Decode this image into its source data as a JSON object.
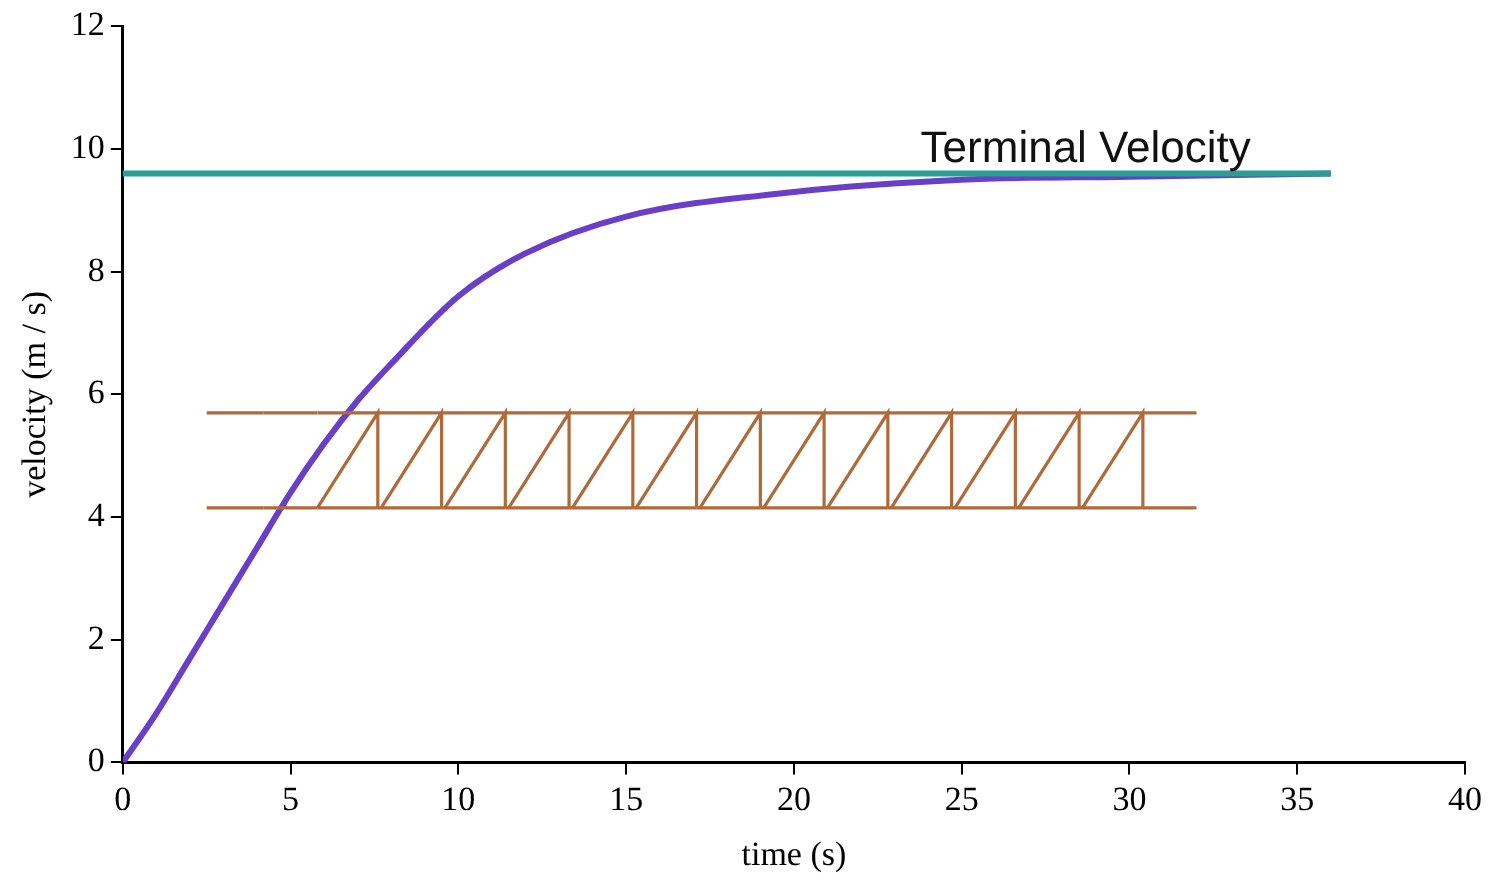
{
  "chart_data": {
    "type": "line",
    "xlabel": "time (s)",
    "ylabel": "velocity (m / s)",
    "x": [
      0,
      1,
      2,
      3,
      4,
      5,
      6,
      7,
      8,
      10,
      12,
      15,
      20,
      25,
      30,
      36
    ],
    "series": [
      {
        "color": "#6a3fc8",
        "values": [
          0,
          0.8,
          1.7,
          2.6,
          3.5,
          4.4,
          5.2,
          5.9,
          6.5,
          7.6,
          8.3,
          8.9,
          9.3,
          9.5,
          9.55,
          9.6
        ]
      }
    ],
    "xlim": [
      0,
      40
    ],
    "xticks": [
      0,
      5,
      10,
      15,
      20,
      25,
      30,
      35,
      40
    ],
    "ylim": [
      0,
      12
    ],
    "yticks": [
      0,
      2,
      4,
      6,
      8,
      10,
      12
    ],
    "ref_lines": [
      {
        "axis": "y",
        "value": 9.6,
        "label": "Terminal Velocity",
        "color": "#2a9d95"
      }
    ],
    "grid": false,
    "legend": false,
    "marker": "none",
    "line_style": "solid"
  }
}
